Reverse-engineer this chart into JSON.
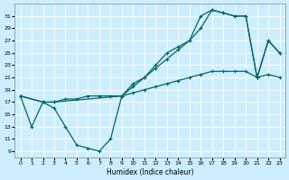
{
  "xlabel": "Humidex (Indice chaleur)",
  "bg_color": "#cceeff",
  "grid_color": "#ffffff",
  "line_color": "#006666",
  "xlim": [
    -0.5,
    23.5
  ],
  "ylim": [
    8,
    33
  ],
  "xticks": [
    0,
    1,
    2,
    3,
    4,
    5,
    6,
    7,
    8,
    9,
    10,
    11,
    12,
    13,
    14,
    15,
    16,
    17,
    18,
    19,
    20,
    21,
    22,
    23
  ],
  "yticks": [
    9,
    11,
    13,
    15,
    17,
    19,
    21,
    23,
    25,
    27,
    29,
    31
  ],
  "line1_x": [
    0,
    1,
    2,
    3,
    4,
    5,
    6,
    7,
    8,
    9,
    10,
    11,
    12,
    13,
    14,
    15,
    16,
    17,
    18,
    19,
    20,
    21,
    22,
    23
  ],
  "line1_y": [
    18,
    13,
    17,
    16,
    13,
    10,
    9.5,
    9,
    11,
    18,
    20,
    21,
    23,
    25,
    26,
    27,
    31,
    32,
    31.5,
    31,
    31,
    21,
    27,
    25
  ],
  "line2_x": [
    0,
    2,
    3,
    9,
    10,
    11,
    12,
    13,
    14,
    15,
    16,
    17,
    18,
    19,
    20,
    21,
    22,
    23
  ],
  "line2_y": [
    18,
    17,
    17,
    18,
    19.5,
    21,
    22.5,
    24,
    25.5,
    27,
    29,
    32,
    31.5,
    31,
    31,
    21,
    27,
    25
  ],
  "line3_x": [
    0,
    2,
    3,
    4,
    5,
    6,
    7,
    8,
    9,
    10,
    11,
    12,
    13,
    14,
    15,
    16,
    17,
    18,
    19,
    20,
    21,
    22,
    23
  ],
  "line3_y": [
    18,
    17,
    17,
    17.5,
    17.5,
    18,
    18,
    18,
    18,
    18.5,
    19,
    19.5,
    20,
    20.5,
    21,
    21.5,
    22,
    22,
    22,
    22,
    21,
    21.5,
    21
  ]
}
